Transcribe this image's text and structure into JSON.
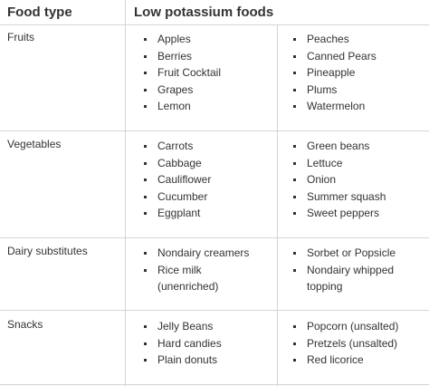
{
  "headers": {
    "food_type": "Food type",
    "low_potassium": "Low potassium foods"
  },
  "rows": [
    {
      "label": "Fruits",
      "col_a": [
        "Apples",
        "Berries",
        "Fruit Cocktail",
        "Grapes",
        "Lemon"
      ],
      "col_b": [
        "Peaches",
        "Canned Pears",
        "Pineapple",
        "Plums",
        "Watermelon"
      ]
    },
    {
      "label": "Vegetables",
      "col_a": [
        "Carrots",
        "Cabbage",
        "Cauliflower",
        "Cucumber",
        "Eggplant"
      ],
      "col_b": [
        "Green beans",
        "Lettuce",
        "Onion",
        "Summer squash",
        "Sweet peppers"
      ]
    },
    {
      "label": "Dairy substitutes",
      "col_a": [
        "Nondairy creamers",
        "Rice milk",
        "(unenriched)"
      ],
      "col_b": [
        "Sorbet or Popsicle",
        "Nondairy whipped",
        "topping"
      ]
    },
    {
      "label": "Snacks",
      "col_a": [
        "Jelly Beans",
        "Hard candies",
        "Plain donuts"
      ],
      "col_b": [
        "Popcorn (unsalted)",
        "Pretzels (unsalted)",
        "Red licorice"
      ]
    }
  ]
}
